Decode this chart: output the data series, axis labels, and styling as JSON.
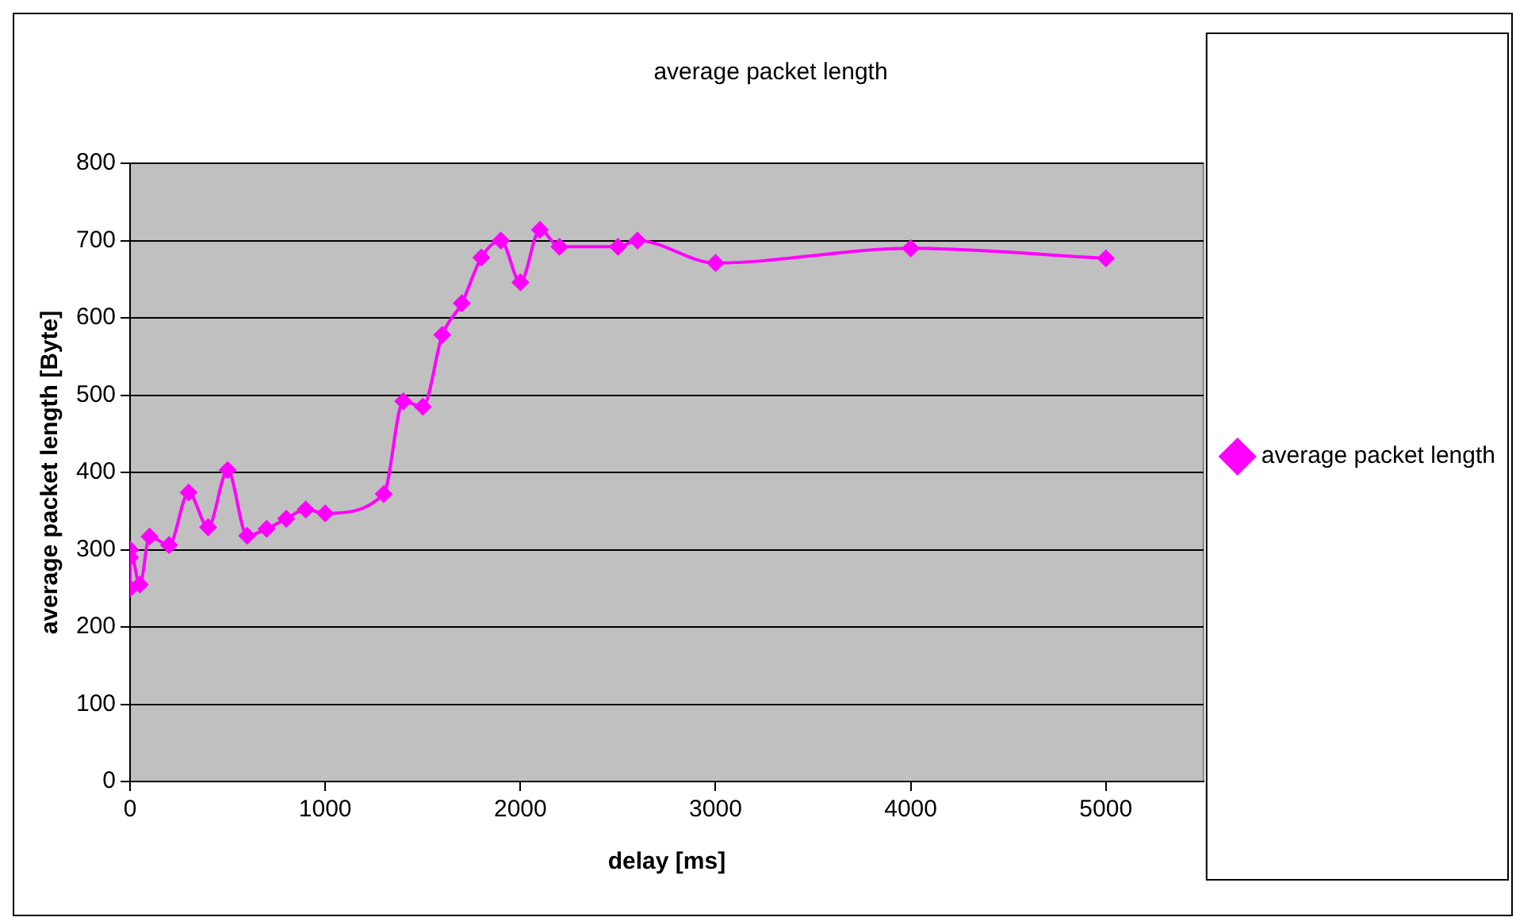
{
  "chart_data": {
    "type": "line",
    "title": "average packet length",
    "xlabel": "delay [ms]",
    "ylabel": "average packet length [Byte]",
    "x": [
      0,
      0,
      0,
      50,
      100,
      200,
      300,
      400,
      500,
      600,
      700,
      800,
      900,
      1000,
      1300,
      1400,
      1500,
      1600,
      1700,
      1800,
      1900,
      2000,
      2100,
      2200,
      2500,
      2600,
      3000,
      4000,
      5000
    ],
    "series": [
      {
        "name": "average packet length",
        "color": "#ff00ff",
        "values": [
          250,
          290,
          300,
          255,
          317,
          306,
          374,
          329,
          403,
          318,
          327,
          340,
          352,
          347,
          372,
          492,
          485,
          578,
          619,
          678,
          700,
          646,
          714,
          692,
          692,
          700,
          671,
          690,
          677
        ]
      }
    ],
    "xlim": [
      0,
      5500
    ],
    "xticks": [
      0,
      1000,
      2000,
      3000,
      4000,
      5000
    ],
    "ylim": [
      0,
      800
    ],
    "yticks": [
      0,
      100,
      200,
      300,
      400,
      500,
      600,
      700,
      800
    ],
    "grid": "y",
    "legend": "right",
    "marker": "diamond",
    "line_style": "solid"
  }
}
